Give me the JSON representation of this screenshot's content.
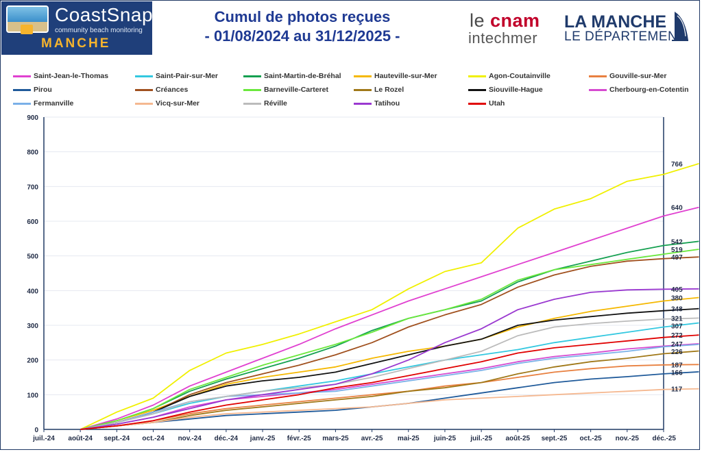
{
  "header": {
    "coastsnap_title": "CoastSnap",
    "coastsnap_subtitle": "community beach monitoring",
    "coastsnap_region": "MANCHE",
    "title_line1": "Cumul de photos reçues",
    "title_line2": "- 01/08/2024 au 31/12/2025 -",
    "cnam_le": "le ",
    "cnam_brand": "cnam",
    "cnam_sub": "intechmer",
    "dept_name": "LA MANCHE",
    "dept_sub": "LE DÉPARTEMENT"
  },
  "colors": {
    "axis": "#1f3864",
    "grid": "#e4e8f0",
    "brand_blue": "#1f3f7a",
    "title_blue": "#1f3a93"
  },
  "chart_data": {
    "type": "line",
    "title": "Cumul de photos reçues",
    "xlabel": "",
    "ylabel": "",
    "ylim": [
      0,
      900
    ],
    "y_ticks": [
      "0",
      "100",
      "200",
      "300",
      "400",
      "500",
      "600",
      "700",
      "800",
      "900"
    ],
    "x_tick_labels": [
      "juil.-24",
      "août-24",
      "sept.-24",
      "oct.-24",
      "nov.-24",
      "déc.-24",
      "janv.-25",
      "févr.-25",
      "mars-25",
      "avr.-25",
      "mai-25",
      "juin-25",
      "juil.-25",
      "août-25",
      "sept.-25",
      "oct.-25",
      "nov.-25",
      "déc.-25"
    ],
    "x": [
      "2024-08-01",
      "2024-09-01",
      "2024-10-01",
      "2024-11-01",
      "2024-12-01",
      "2025-01-01",
      "2025-02-01",
      "2025-03-01",
      "2025-04-01",
      "2025-05-01",
      "2025-06-01",
      "2025-07-01",
      "2025-08-01",
      "2025-09-01",
      "2025-10-01",
      "2025-11-01",
      "2025-12-01",
      "2025-12-31"
    ],
    "legend_position": "top",
    "series": [
      {
        "name": "Saint-Jean-le-Thomas",
        "color": "#e040d0",
        "values": [
          0,
          30,
          70,
          125,
          165,
          205,
          245,
          290,
          330,
          370,
          405,
          440,
          475,
          510,
          545,
          580,
          615,
          640
        ],
        "end_label": "640"
      },
      {
        "name": "Saint-Pair-sur-Mer",
        "color": "#33c8e0",
        "values": [
          0,
          20,
          45,
          75,
          95,
          110,
          125,
          140,
          160,
          180,
          200,
          215,
          230,
          250,
          265,
          280,
          295,
          307
        ],
        "end_label": "307"
      },
      {
        "name": "Saint-Martin-de-Bréhal",
        "color": "#14a050",
        "values": [
          0,
          25,
          60,
          110,
          145,
          175,
          205,
          240,
          285,
          320,
          345,
          370,
          425,
          460,
          485,
          510,
          530,
          542
        ],
        "end_label": "542"
      },
      {
        "name": "Hauteville-sur-Mer",
        "color": "#f5b800",
        "values": [
          0,
          25,
          55,
          95,
          130,
          150,
          165,
          180,
          205,
          225,
          240,
          260,
          295,
          320,
          340,
          355,
          370,
          380
        ],
        "end_label": "380"
      },
      {
        "name": "Agon-Coutainville",
        "color": "#f0f000",
        "values": [
          0,
          50,
          90,
          170,
          220,
          245,
          275,
          310,
          345,
          405,
          455,
          480,
          580,
          635,
          665,
          715,
          735,
          766
        ],
        "end_label": "766"
      },
      {
        "name": "Gouville-sur-Mer",
        "color": "#e88040",
        "values": [
          0,
          10,
          25,
          45,
          60,
          70,
          80,
          90,
          100,
          110,
          125,
          135,
          150,
          165,
          175,
          183,
          186,
          187
        ],
        "end_label": "187"
      },
      {
        "name": "Pirou",
        "color": "#1f5a9a",
        "values": [
          0,
          10,
          20,
          30,
          40,
          45,
          50,
          55,
          65,
          75,
          90,
          105,
          120,
          135,
          145,
          152,
          160,
          166
        ],
        "end_label": "166"
      },
      {
        "name": "Créances",
        "color": "#a0501e",
        "values": [
          0,
          20,
          50,
          100,
          135,
          160,
          185,
          215,
          250,
          295,
          330,
          360,
          410,
          445,
          470,
          485,
          492,
          497
        ],
        "end_label": "497"
      },
      {
        "name": "Barneville-Carteret",
        "color": "#6ae83c",
        "values": [
          0,
          25,
          60,
          115,
          150,
          185,
          215,
          245,
          280,
          320,
          345,
          375,
          430,
          460,
          475,
          490,
          505,
          519
        ],
        "end_label": "519"
      },
      {
        "name": "Le Rozel",
        "color": "#a07818",
        "values": [
          0,
          10,
          20,
          40,
          55,
          65,
          75,
          85,
          95,
          110,
          120,
          135,
          160,
          180,
          195,
          205,
          218,
          226
        ],
        "end_label": "226"
      },
      {
        "name": "Siouville-Hague",
        "color": "#111111",
        "values": [
          0,
          20,
          50,
          95,
          125,
          140,
          150,
          165,
          190,
          215,
          240,
          260,
          300,
          315,
          325,
          335,
          342,
          348
        ],
        "end_label": "348"
      },
      {
        "name": "Cherbourg-en-Cotentin",
        "color": "#d64ad0",
        "values": [
          0,
          15,
          35,
          65,
          85,
          95,
          105,
          115,
          130,
          145,
          160,
          175,
          195,
          210,
          220,
          232,
          240,
          247
        ],
        "end_label": "247"
      },
      {
        "name": "Fermanville",
        "color": "#7ab0e8",
        "values": [
          0,
          20,
          50,
          80,
          95,
          100,
          105,
          110,
          125,
          140,
          155,
          170,
          190,
          205,
          215,
          225,
          238,
          245
        ],
        "end_label": ""
      },
      {
        "name": "Vicq-sur-Mer",
        "color": "#f5b890",
        "values": [
          0,
          10,
          20,
          35,
          45,
          50,
          55,
          60,
          65,
          75,
          85,
          90,
          95,
          100,
          105,
          110,
          115,
          117
        ],
        "end_label": "117"
      },
      {
        "name": "Réville",
        "color": "#bbbbbb",
        "values": [
          0,
          20,
          45,
          80,
          95,
          110,
          120,
          130,
          150,
          175,
          200,
          225,
          270,
          295,
          305,
          312,
          318,
          321
        ],
        "end_label": "321"
      },
      {
        "name": "Tatihou",
        "color": "#9a38d0",
        "values": [
          0,
          15,
          35,
          60,
          85,
          100,
          115,
          130,
          160,
          200,
          250,
          290,
          345,
          375,
          395,
          402,
          404,
          405
        ],
        "end_label": "405"
      },
      {
        "name": "Utah",
        "color": "#e00000",
        "values": [
          0,
          10,
          25,
          50,
          70,
          85,
          100,
          120,
          135,
          155,
          175,
          195,
          220,
          235,
          245,
          255,
          265,
          272
        ],
        "end_label": "272"
      }
    ]
  }
}
